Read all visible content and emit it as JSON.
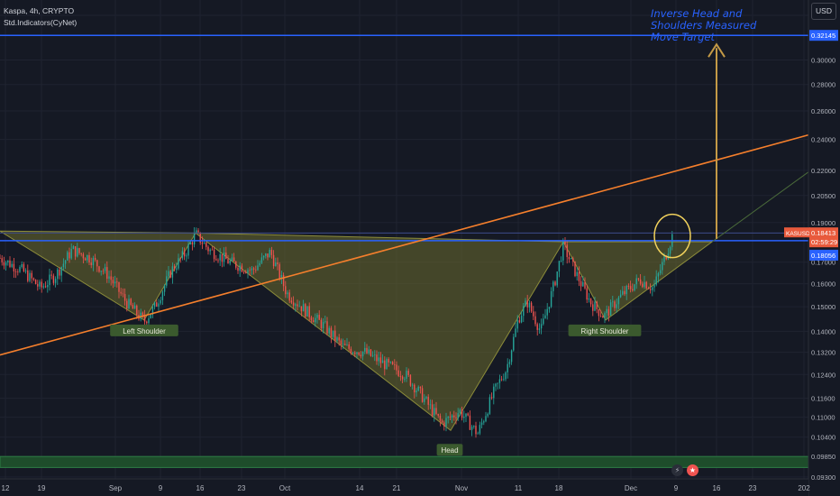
{
  "header": {
    "title": "Kaspa, 4h, CRYPTO",
    "indicator": "Std.Indicators(CyNet)"
  },
  "currency_button": "USD",
  "annotation": {
    "lines": [
      "Inverse Head and",
      "Shoulders Measured",
      "Move Target"
    ]
  },
  "pattern_labels": {
    "left_shoulder": "Left Shoulder",
    "head": "Head",
    "right_shoulder": "Right Shoulder"
  },
  "colors": {
    "background": "#151924",
    "up": "#26a69a",
    "down": "#ef5350",
    "horizontal": "#2962ff",
    "trend": "#f57f2c",
    "fill": "#6b6b2e",
    "annotation": "#2962ff",
    "target_arrow": "#c49a46",
    "circle": "#f2d25c",
    "zone": "#1e4d2b"
  },
  "price_badges": {
    "target": "0.32145",
    "current": {
      "symbol": "KASUSD",
      "price": "0.18413",
      "countdown": "02:59:29"
    },
    "level": "0.18056"
  },
  "event_icons": [
    "lightning-icon",
    "us-flag-icon"
  ],
  "chart_data": {
    "type": "candlestick",
    "title": "Kaspa, 4h, CRYPTO",
    "y_scale": "log",
    "ylim": [
      0.0925,
      0.355
    ],
    "y_ticks": [
      "0.34000",
      "0.32145",
      "0.30000",
      "0.28000",
      "0.26000",
      "0.24000",
      "0.22000",
      "0.20500",
      "0.19000",
      "0.18413",
      "0.18056",
      "0.17000",
      "0.16000",
      "0.15000",
      "0.14000",
      "0.13200",
      "0.12400",
      "0.11600",
      "0.11000",
      "0.10400",
      "0.09850",
      "0.09300"
    ],
    "x_ticks": [
      "12",
      "19",
      "Sep",
      "9",
      "16",
      "23",
      "Oct",
      "14",
      "21",
      "Nov",
      "11",
      "18",
      "Dec",
      "9",
      "16",
      "23",
      "202"
    ],
    "candle_anchors": [
      [
        0,
        0.172
      ],
      [
        25,
        0.166
      ],
      [
        45,
        0.158
      ],
      [
        62,
        0.164
      ],
      [
        80,
        0.176
      ],
      [
        100,
        0.172
      ],
      [
        120,
        0.164
      ],
      [
        140,
        0.152
      ],
      [
        160,
        0.144
      ],
      [
        172,
        0.15
      ],
      [
        190,
        0.166
      ],
      [
        205,
        0.174
      ],
      [
        217,
        0.184
      ],
      [
        232,
        0.176
      ],
      [
        255,
        0.17
      ],
      [
        280,
        0.166
      ],
      [
        300,
        0.175
      ],
      [
        318,
        0.156
      ],
      [
        340,
        0.148
      ],
      [
        360,
        0.142
      ],
      [
        380,
        0.134
      ],
      [
        405,
        0.132
      ],
      [
        425,
        0.128
      ],
      [
        450,
        0.124
      ],
      [
        470,
        0.116
      ],
      [
        490,
        0.108
      ],
      [
        510,
        0.112
      ],
      [
        530,
        0.105
      ],
      [
        548,
        0.118
      ],
      [
        562,
        0.126
      ],
      [
        575,
        0.145
      ],
      [
        585,
        0.152
      ],
      [
        600,
        0.14
      ],
      [
        615,
        0.16
      ],
      [
        625,
        0.178
      ],
      [
        640,
        0.164
      ],
      [
        655,
        0.152
      ],
      [
        670,
        0.146
      ],
      [
        690,
        0.155
      ],
      [
        710,
        0.162
      ],
      [
        725,
        0.158
      ],
      [
        740,
        0.175
      ],
      [
        748,
        0.186
      ]
    ],
    "levels": {
      "neckline": 0.18056,
      "target": 0.32145,
      "current": 0.18413
    },
    "pattern_points": [
      {
        "label": "Left Shoulder",
        "value": 0.1445
      },
      {
        "label": "Head",
        "value": 0.106
      },
      {
        "label": "Right Shoulder",
        "value": 0.1445
      }
    ],
    "zone": [
      0.0955,
      0.0985
    ]
  }
}
